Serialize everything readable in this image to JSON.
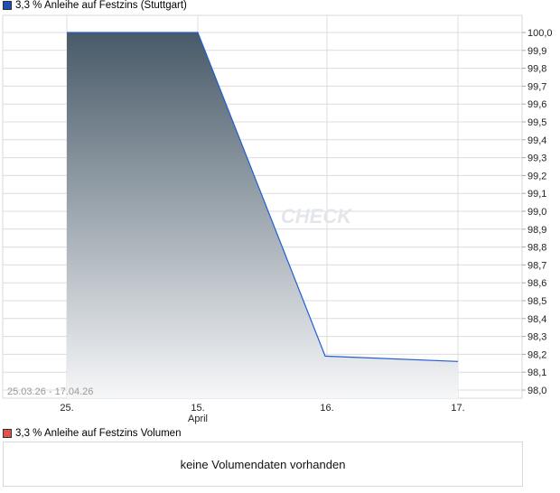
{
  "legend_main": "3,3 % Anleihe auf Festzins (Stuttgart)",
  "legend_volume": "3,3 % Anleihe auf Festzins Volumen",
  "date_range": "25.03.26 - 17.04.26",
  "volume_message": "keine Volumendaten vorhanden",
  "watermark": "CHECK",
  "colors": {
    "line": "#1f5fd0",
    "fill_top": "#485a68",
    "fill_bottom": "#f6f7f9",
    "legend_main": "#1f4fb0",
    "legend_volume": "#d9534f"
  },
  "chart_data": {
    "type": "area",
    "x_ticks": [
      "25.",
      "15.",
      "16.",
      "17."
    ],
    "x_sublabel": "April",
    "points": [
      {
        "x": "25.",
        "y": 100.0
      },
      {
        "x": "15.",
        "y": 100.0
      },
      {
        "x": "16.",
        "y": 98.19
      },
      {
        "x": "17.",
        "y": 98.16
      }
    ],
    "ylim": [
      98.0,
      100.0
    ],
    "y_ticks": [
      "98,0",
      "98,1",
      "98,2",
      "98,3",
      "98,4",
      "98,5",
      "98,6",
      "98,7",
      "98,8",
      "98,9",
      "99,0",
      "99,1",
      "99,2",
      "99,3",
      "99,4",
      "99,5",
      "99,6",
      "99,7",
      "99,8",
      "99,9",
      "100,0"
    ],
    "grid": true,
    "y_axis_position": "right"
  }
}
